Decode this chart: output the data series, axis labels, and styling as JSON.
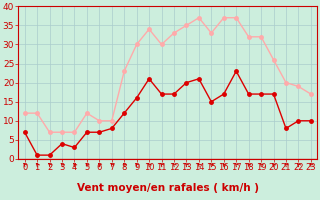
{
  "hours": [
    0,
    1,
    2,
    3,
    4,
    5,
    6,
    7,
    8,
    9,
    10,
    11,
    12,
    13,
    14,
    15,
    16,
    17,
    18,
    19,
    20,
    21,
    22,
    23
  ],
  "wind_avg": [
    7,
    1,
    1,
    4,
    3,
    7,
    7,
    8,
    12,
    16,
    21,
    17,
    17,
    20,
    21,
    15,
    17,
    23,
    17,
    17,
    17,
    8,
    10,
    10
  ],
  "wind_gust": [
    12,
    12,
    7,
    7,
    7,
    12,
    10,
    10,
    23,
    30,
    34,
    30,
    33,
    35,
    37,
    33,
    37,
    37,
    32,
    32,
    26,
    20,
    19,
    17
  ],
  "avg_color": "#dd0000",
  "gust_color": "#ffaaaa",
  "bg_color": "#cceedd",
  "grid_color": "#aacccc",
  "axis_color": "#cc0000",
  "text_color": "#cc0000",
  "xlabel": "Vent moyen/en rafales ( km/h )",
  "ylim": [
    0,
    40
  ],
  "yticks": [
    0,
    5,
    10,
    15,
    20,
    25,
    30,
    35,
    40
  ],
  "tick_fontsize": 6.5,
  "xlabel_fontsize": 7.5,
  "marker_size": 2.5,
  "line_width": 1.0
}
